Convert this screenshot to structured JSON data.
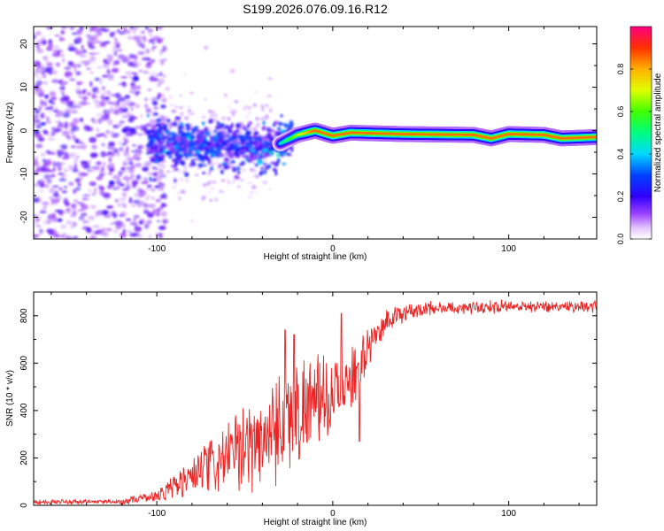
{
  "figure": {
    "title": "S199.2026.076.09.16.R12"
  },
  "colors": {
    "snr_line": "#ee2222",
    "frame": "#000000",
    "background": "#ffffff"
  },
  "chart_data": [
    {
      "type": "heatmap",
      "title": "S199.2026.076.09.16.R12",
      "xlabel": "Height of straight line (km)",
      "ylabel": "Frequency (Hz)",
      "xlim": [
        -170,
        150
      ],
      "ylim": [
        -25,
        24
      ],
      "xticks": [
        -100,
        0,
        100
      ],
      "yticks": [
        20,
        10,
        0,
        -10,
        -20
      ],
      "xtick_labels": [
        "-100",
        "0",
        "100"
      ],
      "ytick_labels": [
        "20",
        "10",
        "0",
        "-10",
        "-20"
      ],
      "colorbar": {
        "label": "Normalized spectral amplitude",
        "range": [
          0,
          1
        ],
        "ticks": [
          0.0,
          0.2,
          0.4,
          0.6,
          0.8
        ],
        "tick_labels": [
          "0.0",
          "0.2",
          "0.4",
          "0.6",
          "0.8"
        ]
      },
      "ridge": {
        "description_points": [
          {
            "x": -100,
            "freq": -3.0
          },
          {
            "x": -80,
            "freq": -3.5
          },
          {
            "x": -60,
            "freq": -3.2
          },
          {
            "x": -45,
            "freq": -4.0
          },
          {
            "x": -30,
            "freq": -3.0
          },
          {
            "x": -20,
            "freq": -1.0
          },
          {
            "x": -10,
            "freq": 0.0
          },
          {
            "x": 0,
            "freq": -1.2
          },
          {
            "x": 10,
            "freq": -0.5
          },
          {
            "x": 40,
            "freq": -0.8
          },
          {
            "x": 80,
            "freq": -1.0
          },
          {
            "x": 90,
            "freq": -1.8
          },
          {
            "x": 100,
            "freq": -0.8
          },
          {
            "x": 120,
            "freq": -1.0
          },
          {
            "x": 130,
            "freq": -1.8
          },
          {
            "x": 150,
            "freq": -1.5
          }
        ],
        "amplitude": [
          {
            "x": -110,
            "a": 0.15
          },
          {
            "x": -60,
            "a": 0.3
          },
          {
            "x": -30,
            "a": 0.45
          },
          {
            "x": -10,
            "a": 0.9
          },
          {
            "x": 5,
            "a": 0.85
          },
          {
            "x": 30,
            "a": 0.9
          },
          {
            "x": 80,
            "a": 0.95
          },
          {
            "x": 150,
            "a": 0.95
          }
        ]
      }
    },
    {
      "type": "line",
      "xlabel": "Height of straight line (km)",
      "ylabel": "SNR (10 * v/v)",
      "xlim": [
        -170,
        150
      ],
      "ylim": [
        0,
        900
      ],
      "xticks": [
        -100,
        0,
        100
      ],
      "yticks": [
        0,
        200,
        400,
        600,
        800
      ],
      "xtick_labels": [
        "-100",
        "0",
        "100"
      ],
      "ytick_labels": [
        "0",
        "200",
        "400",
        "600",
        "800"
      ],
      "series": [
        {
          "name": "SNR",
          "envelope": [
            {
              "x": -170,
              "mean": 15,
              "spread": 10
            },
            {
              "x": -120,
              "mean": 15,
              "spread": 10
            },
            {
              "x": -100,
              "mean": 40,
              "spread": 25
            },
            {
              "x": -80,
              "mean": 120,
              "spread": 90
            },
            {
              "x": -60,
              "mean": 200,
              "spread": 140
            },
            {
              "x": -40,
              "mean": 280,
              "spread": 200
            },
            {
              "x": -30,
              "mean": 360,
              "spread": 240
            },
            {
              "x": -15,
              "mean": 420,
              "spread": 200
            },
            {
              "x": 0,
              "mean": 460,
              "spread": 150
            },
            {
              "x": 10,
              "mean": 520,
              "spread": 120
            },
            {
              "x": 20,
              "mean": 660,
              "spread": 80
            },
            {
              "x": 30,
              "mean": 780,
              "spread": 50
            },
            {
              "x": 50,
              "mean": 830,
              "spread": 30
            },
            {
              "x": 100,
              "mean": 840,
              "spread": 25
            },
            {
              "x": 150,
              "mean": 840,
              "spread": 25
            }
          ],
          "peaks": [
            {
              "x": -27,
              "y": 740
            },
            {
              "x": -22,
              "y": 720
            },
            {
              "x": 15,
              "y": 270
            },
            {
              "x": 5,
              "y": 810
            }
          ]
        }
      ]
    }
  ]
}
